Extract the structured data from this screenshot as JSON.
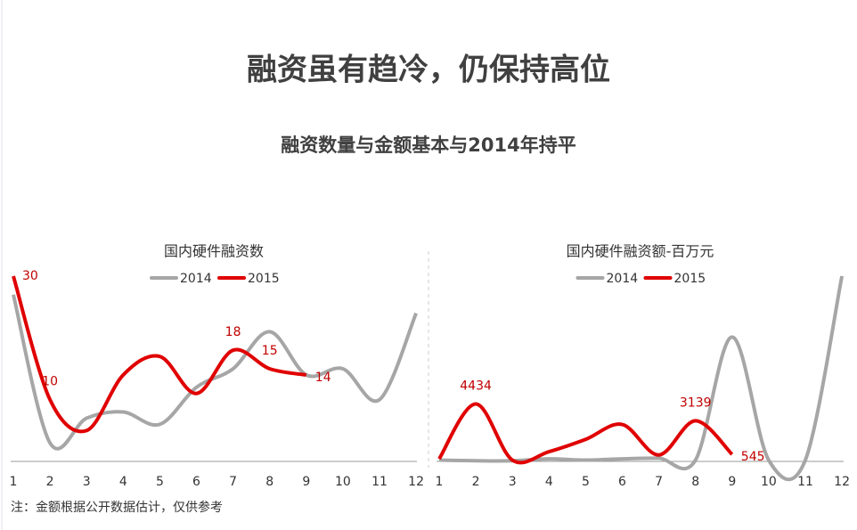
{
  "title": "融资虽有趋冷，仍保持高位",
  "subtitle": "融资数量与金额基本与2014年持平",
  "note": "注：金额根据公开数据估计，仅供参考",
  "chart_data": [
    {
      "type": "line",
      "title": "国内硬件融资数",
      "categories": [
        "1",
        "2",
        "3",
        "4",
        "5",
        "6",
        "7",
        "8",
        "9",
        "10",
        "11",
        "12"
      ],
      "series": [
        {
          "name": "2014",
          "color": "#a6a6a6",
          "values": [
            27,
            3,
            7,
            8,
            6,
            12,
            15,
            21,
            14,
            15,
            10,
            24
          ]
        },
        {
          "name": "2015",
          "color": "#e00000",
          "values": [
            30,
            10,
            5,
            14,
            17,
            11,
            18,
            15,
            14,
            null,
            null,
            null
          ],
          "value_labels": [
            "30",
            "10",
            null,
            null,
            null,
            null,
            "18",
            "15",
            "14",
            null,
            null,
            null
          ]
        }
      ]
    },
    {
      "type": "line",
      "title": "国内硬件融资额-百万元",
      "categories": [
        "1",
        "2",
        "3",
        "4",
        "5",
        "6",
        "7",
        "8",
        "9",
        "10",
        "11",
        "12"
      ],
      "series": [
        {
          "name": "2014",
          "color": "#a6a6a6",
          "values": [
            100,
            50,
            50,
            200,
            100,
            200,
            250,
            100,
            9600,
            100,
            100,
            14300
          ]
        },
        {
          "name": "2015",
          "color": "#e00000",
          "values": [
            200,
            4434,
            100,
            750,
            1700,
            2850,
            500,
            3139,
            545,
            null,
            null,
            null
          ],
          "value_labels": [
            null,
            "4434",
            null,
            null,
            null,
            null,
            null,
            "3139",
            "545",
            null,
            null,
            null
          ]
        }
      ]
    }
  ]
}
